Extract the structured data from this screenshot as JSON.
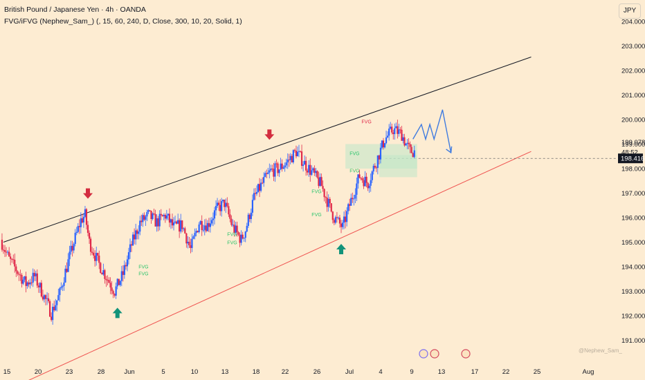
{
  "header": {
    "title": "British Pound / Japanese Yen · 4h · OANDA",
    "indicator": "FVG/iFVG (Nephew_Sam_) (, 15, 60, 240, D, Close, 300, 10, 20, Solid, 1)"
  },
  "currency_badge": "JPY",
  "watermark": "@Nephew_Sam_",
  "colors": {
    "background": "#fdecd2",
    "bull": "#2962ff",
    "bear": "#e0294a",
    "fvg_label": "#2dc46c",
    "fvg_box": "#bfe7c9",
    "arrow_down": "#d32d3f",
    "arrow_up": "#12937a",
    "upper_line": "#131722",
    "lower_line": "#ef5350",
    "projection": "#3f7be0"
  },
  "chart_data": {
    "type": "candlestick",
    "symbol": "GBPJPY",
    "timeframe": "4h",
    "y_axis_ticks": [
      "191.000",
      "192.000",
      "193.000",
      "194.000",
      "195.000",
      "196.000",
      "197.000",
      "198.000",
      "199.000",
      "200.000",
      "201.000",
      "202.000",
      "203.000",
      "204.000"
    ],
    "ylim": [
      190.5,
      204.5
    ],
    "x_axis_ticks": [
      "15",
      "20",
      "23",
      "28",
      "Jun",
      "5",
      "10",
      "13",
      "18",
      "22",
      "26",
      "Jul",
      "4",
      "9",
      "13",
      "17",
      "22",
      "25",
      "Aug"
    ],
    "last_price": "198.416",
    "countdown": "48:52",
    "cursor_price": "199.078",
    "price_path": [
      [
        0,
        195.1
      ],
      [
        2,
        194.3
      ],
      [
        4,
        193.8
      ],
      [
        6,
        193.3
      ],
      [
        8,
        193.6
      ],
      [
        10,
        192.9
      ],
      [
        12,
        192.1
      ],
      [
        14,
        192.9
      ],
      [
        15,
        193.6
      ],
      [
        17,
        194.8
      ],
      [
        19,
        195.9
      ],
      [
        20,
        196.1
      ],
      [
        21,
        195.0
      ],
      [
        23,
        194.2
      ],
      [
        25,
        193.6
      ],
      [
        27,
        193.0
      ],
      [
        29,
        193.7
      ],
      [
        31,
        194.9
      ],
      [
        33,
        195.8
      ],
      [
        35,
        196.1
      ],
      [
        37,
        195.8
      ],
      [
        39,
        196.1
      ],
      [
        41,
        195.6
      ],
      [
        43,
        195.7
      ],
      [
        45,
        194.7
      ],
      [
        47,
        195.8
      ],
      [
        49,
        195.7
      ],
      [
        51,
        196.3
      ],
      [
        53,
        196.6
      ],
      [
        55,
        195.6
      ],
      [
        57,
        195.1
      ],
      [
        58,
        195.5
      ],
      [
        60,
        196.8
      ],
      [
        62,
        197.4
      ],
      [
        64,
        197.9
      ],
      [
        66,
        198.0
      ],
      [
        68,
        198.3
      ],
      [
        70,
        198.7
      ],
      [
        72,
        198.2
      ],
      [
        74,
        197.8
      ],
      [
        76,
        197.3
      ],
      [
        78,
        196.4
      ],
      [
        79,
        196.0
      ],
      [
        81,
        195.6
      ],
      [
        83,
        196.7
      ],
      [
        85,
        197.7
      ],
      [
        87,
        197.4
      ],
      [
        89,
        198.3
      ],
      [
        91,
        199.2
      ],
      [
        93,
        199.6
      ],
      [
        95,
        199.4
      ],
      [
        96,
        199.0
      ],
      [
        97,
        198.7
      ]
    ],
    "annotations": {
      "down_arrows": [
        {
          "x": 20,
          "price": 196.8
        },
        {
          "x": 63,
          "price": 199.2
        }
      ],
      "up_arrows": [
        {
          "x": 27,
          "price": 192.3
        },
        {
          "x": 80,
          "price": 194.9
        }
      ],
      "fvg_labels": [
        {
          "text": "FVG",
          "x": 32,
          "price": 193.93
        },
        {
          "text": "FVG",
          "x": 32,
          "price": 193.65
        },
        {
          "text": "FVG",
          "x": 53,
          "price": 195.25
        },
        {
          "text": "FVG",
          "x": 53,
          "price": 194.92
        },
        {
          "text": "FVG",
          "x": 73,
          "price": 197.0
        },
        {
          "text": "FVG",
          "x": 73,
          "price": 196.05
        },
        {
          "text": "FVG",
          "x": 82,
          "price": 198.55
        },
        {
          "text": "FVG",
          "x": 82,
          "price": 197.85
        }
      ],
      "ifvg_label": {
        "text": "FVG",
        "x": 84,
        "price": 199.85
      },
      "upper_channel": [
        [
          0,
          195.0
        ],
        [
          125,
          202.55
        ]
      ],
      "lower_channel": [
        [
          0,
          188.9
        ],
        [
          125,
          198.7
        ]
      ],
      "projection_path": [
        [
          97,
          199.2
        ],
        [
          99,
          199.8
        ],
        [
          100,
          199.2
        ],
        [
          101,
          199.8
        ],
        [
          102,
          199.2
        ],
        [
          104,
          200.4
        ],
        [
          106,
          198.65
        ]
      ]
    }
  }
}
